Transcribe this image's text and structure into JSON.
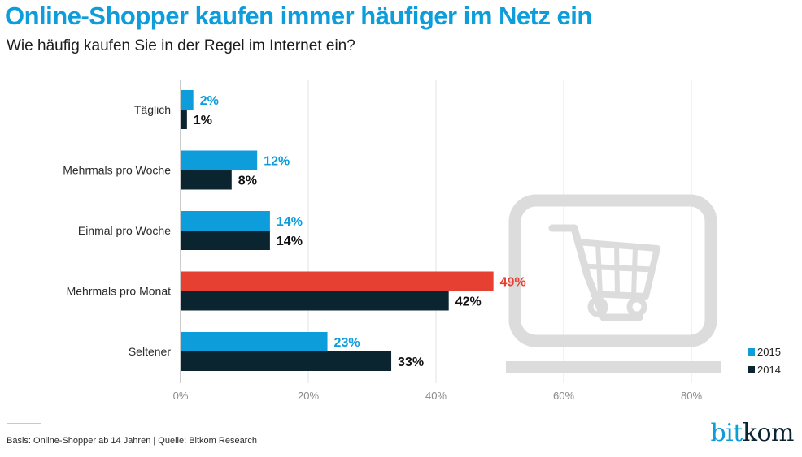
{
  "header": {
    "title": "Online-Shopper kaufen immer häufiger im Netz ein",
    "subtitle": "Wie häufig kaufen Sie in der Regel im Internet ein?"
  },
  "footer": {
    "note": "Basis: Online-Shopper ab 14 Jahren | Quelle: Bitkom Research",
    "logo_part1": "bit",
    "logo_part2": "kom"
  },
  "decoration": {
    "background_icon": "laptop-shopping-cart-icon"
  },
  "colors": {
    "series_2015": "#0d9ddb",
    "series_2014": "#0b2530",
    "highlight": "#e64032",
    "grid": "#e3e3e3",
    "icon": "#dcdcdc"
  },
  "chart_data": {
    "type": "bar",
    "orientation": "horizontal",
    "title": "Online-Shopper kaufen immer häufiger im Netz ein",
    "subtitle": "Wie häufig kaufen Sie in der Regel im Internet ein?",
    "categories": [
      "Täglich",
      "Mehrmals pro Woche",
      "Einmal pro Woche",
      "Mehrmals pro Monat",
      "Seltener"
    ],
    "series": [
      {
        "name": "2015",
        "values": [
          2,
          12,
          14,
          49,
          23
        ],
        "labels": [
          "2%",
          "12%",
          "14%",
          "49%",
          "23%"
        ],
        "highlight_index": 3
      },
      {
        "name": "2014",
        "values": [
          1,
          8,
          14,
          42,
          33
        ],
        "labels": [
          "1%",
          "8%",
          "14%",
          "42%",
          "33%"
        ]
      }
    ],
    "xlim": [
      0,
      80
    ],
    "xticks": [
      0,
      20,
      40,
      60,
      80
    ],
    "xtick_labels": [
      "0%",
      "20%",
      "40%",
      "60%",
      "80%"
    ],
    "xlabel": "",
    "ylabel": "",
    "grid": true,
    "legend": {
      "position": "bottom-right",
      "entries": [
        "2015",
        "2014"
      ]
    }
  }
}
